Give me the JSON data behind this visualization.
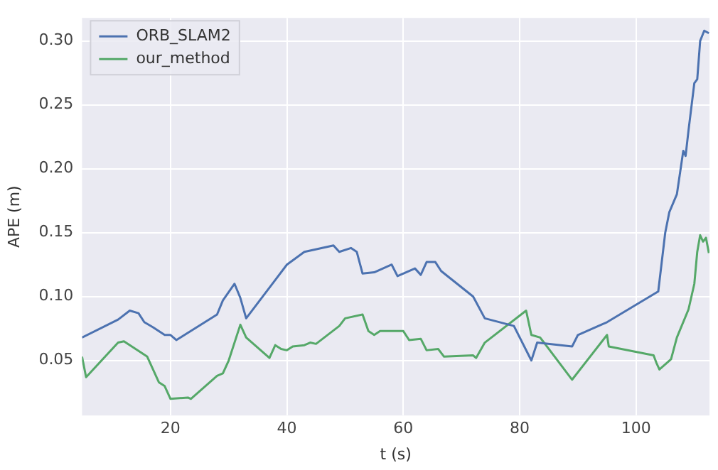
{
  "chart_data": {
    "type": "line",
    "xlabel": "t (s)",
    "ylabel": "APE (m)",
    "xlim": [
      4.8,
      112.6
    ],
    "ylim": [
      0.007,
      0.318
    ],
    "xticks": [
      20,
      40,
      60,
      80,
      100
    ],
    "yticks": [
      {
        "value": 0.05,
        "label": "0.05"
      },
      {
        "value": 0.1,
        "label": "0.10"
      },
      {
        "value": 0.15,
        "label": "0.15"
      },
      {
        "value": 0.2,
        "label": "0.20"
      },
      {
        "value": 0.25,
        "label": "0.25"
      },
      {
        "value": 0.3,
        "label": "0.30"
      }
    ],
    "grid": true,
    "legend": "top left",
    "marker": "none",
    "line_style": "solid",
    "series": [
      {
        "name": "ORB_SLAM2",
        "color": "#4c72b0",
        "x": [
          4.8,
          11,
          13,
          14.5,
          15.5,
          17,
          19,
          20,
          21,
          28,
          29,
          31,
          32,
          33,
          38,
          40,
          43,
          48,
          49,
          51,
          52,
          53,
          55,
          58,
          59,
          62,
          63,
          64,
          65.5,
          66.5,
          72,
          74,
          79,
          82,
          83,
          89,
          90,
          94,
          95,
          103.8,
          105,
          105.7,
          107,
          108.1,
          108.5,
          109,
          110,
          110.5,
          111,
          111.7,
          112.5
        ],
        "values": [
          0.068,
          0.082,
          0.089,
          0.087,
          0.08,
          0.076,
          0.07,
          0.07,
          0.066,
          0.086,
          0.097,
          0.11,
          0.099,
          0.083,
          0.113,
          0.125,
          0.135,
          0.14,
          0.135,
          0.138,
          0.135,
          0.118,
          0.119,
          0.125,
          0.116,
          0.122,
          0.117,
          0.127,
          0.127,
          0.12,
          0.1,
          0.083,
          0.077,
          0.05,
          0.064,
          0.061,
          0.07,
          0.078,
          0.08,
          0.104,
          0.15,
          0.166,
          0.18,
          0.214,
          0.21,
          0.23,
          0.267,
          0.27,
          0.3,
          0.308,
          0.306
        ]
      },
      {
        "name": "our_method",
        "color": "#55a868",
        "x": [
          4.8,
          5.5,
          11,
          12,
          16,
          18,
          19,
          20,
          23,
          23.5,
          28,
          29,
          30,
          32,
          33,
          37,
          38,
          39,
          40,
          41,
          43,
          44,
          45,
          49,
          50,
          53,
          54,
          55,
          56,
          60,
          61,
          63,
          64,
          66,
          67,
          72,
          72.5,
          74,
          81.1,
          82,
          83.5,
          89,
          95,
          95.3,
          103,
          103.5,
          104,
          106,
          107,
          109,
          110,
          110.5,
          111,
          111.5,
          112,
          112.5
        ],
        "values": [
          0.053,
          0.037,
          0.064,
          0.065,
          0.053,
          0.033,
          0.03,
          0.02,
          0.021,
          0.02,
          0.038,
          0.04,
          0.05,
          0.078,
          0.068,
          0.052,
          0.062,
          0.059,
          0.058,
          0.061,
          0.062,
          0.064,
          0.063,
          0.077,
          0.083,
          0.086,
          0.073,
          0.07,
          0.073,
          0.073,
          0.066,
          0.067,
          0.058,
          0.059,
          0.053,
          0.054,
          0.052,
          0.064,
          0.089,
          0.07,
          0.068,
          0.035,
          0.07,
          0.061,
          0.054,
          0.048,
          0.043,
          0.051,
          0.068,
          0.09,
          0.11,
          0.135,
          0.148,
          0.143,
          0.146,
          0.134
        ]
      }
    ]
  }
}
